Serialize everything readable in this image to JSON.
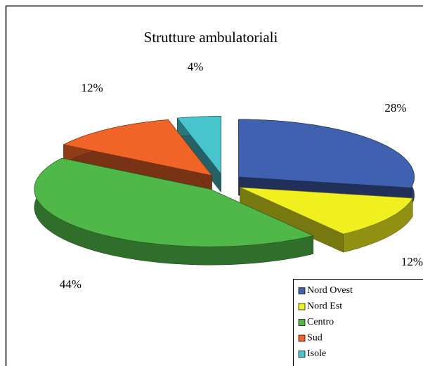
{
  "chart_data": {
    "type": "pie",
    "title": "Strutture ambulatoriali",
    "categories": [
      "Nord Ovest",
      "Nord Est",
      "Centro",
      "Sud",
      "Isole"
    ],
    "values": [
      28,
      12,
      44,
      12,
      4
    ],
    "value_labels": [
      "28%",
      "12%",
      "44%",
      "12%",
      "4%"
    ],
    "colors": [
      "#4060b0",
      "#f0f020",
      "#50b848",
      "#f06428",
      "#48c4cc"
    ],
    "legend": "bottom-right"
  }
}
